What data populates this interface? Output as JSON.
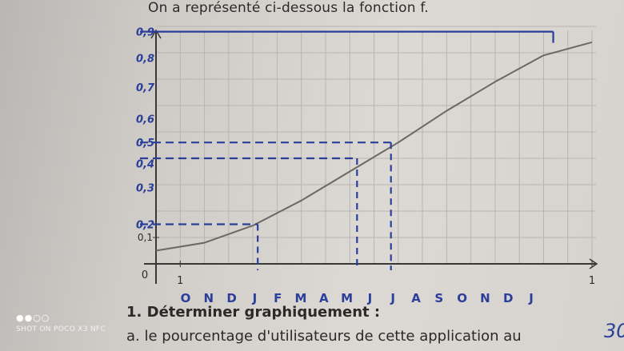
{
  "page": {
    "intro": "On a représenté ci-dessous la fonction f.",
    "question_1": "1. Déterminer graphiquement :",
    "question_a": "a. le pourcentage d'utilisateurs de cette application au",
    "margin_scribble": "30"
  },
  "watermark": {
    "dots": "●●○○",
    "text": "SHOT ON POCO X3 NFC"
  },
  "colors": {
    "curve": "#6b6863",
    "ink": "#2a3e9a",
    "grid": "#b8b5b0",
    "axis": "#3a3836"
  },
  "chart_data": {
    "type": "line",
    "title": "",
    "xlabel": "",
    "ylabel": "",
    "xlim": [
      0,
      18
    ],
    "ylim": [
      0,
      0.9
    ],
    "grid": true,
    "printed_x_ticks": [
      {
        "x": 0,
        "label": "0"
      },
      {
        "x": 1,
        "label": "1"
      },
      {
        "x": 18,
        "label": "1"
      }
    ],
    "printed_y_ticks": [
      {
        "y": 0.1,
        "label": "0,1"
      }
    ],
    "handwritten_y_labels": [
      {
        "y": 0.15,
        "label": "0,2"
      },
      {
        "y": 0.29,
        "label": "0,3"
      },
      {
        "y": 0.38,
        "label": "0,4"
      },
      {
        "y": 0.46,
        "label": "0,5"
      },
      {
        "y": 0.55,
        "label": "0,6"
      },
      {
        "y": 0.67,
        "label": "0,7"
      },
      {
        "y": 0.78,
        "label": "0,8"
      },
      {
        "y": 0.88,
        "label": "0,9"
      }
    ],
    "handwritten_month_labels": [
      "O",
      "N",
      "D",
      "J",
      "F",
      "M",
      "A",
      "M",
      "J",
      "J",
      "A",
      "S",
      "O",
      "N",
      "D",
      "J"
    ],
    "series": [
      {
        "x": [
          0,
          2,
          4,
          6,
          8,
          10,
          12,
          14,
          16,
          18
        ],
        "y": [
          0.05,
          0.08,
          0.145,
          0.24,
          0.35,
          0.46,
          0.58,
          0.69,
          0.79,
          0.84
        ]
      }
    ],
    "annotations": [
      {
        "y": 0.15,
        "x": 4.2,
        "style": "dashed"
      },
      {
        "y": 0.4,
        "x": 8.3,
        "style": "dashed"
      },
      {
        "y": 0.46,
        "x": 9.7,
        "style": "dashed"
      },
      {
        "y": 0.88,
        "x": 16.4,
        "style": "solid"
      }
    ]
  }
}
